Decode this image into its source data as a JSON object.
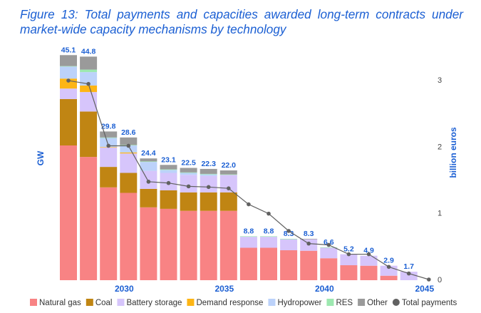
{
  "title": "Figure 13: Total payments and capacities awarded long-term contracts under market-wide capacity mechanisms by technology",
  "chart_data": {
    "type": "bar",
    "stacked": true,
    "title": "Figure 13: Total payments and capacities awarded long-term contracts under market-wide capacity mechanisms by technology",
    "ylabel": "GW",
    "y2label": "billion euros",
    "x": [
      2027,
      2028,
      2029,
      2030,
      2031,
      2032,
      2033,
      2034,
      2035,
      2036,
      2037,
      2038,
      2039,
      2040,
      2041,
      2042,
      2043,
      2044,
      2045
    ],
    "xtick_labels": [
      "2030",
      "2035",
      "2040",
      "2045"
    ],
    "xticks": [
      2030,
      2035,
      2040,
      2045
    ],
    "y2ticks": [
      "0",
      "1",
      "2",
      "3"
    ],
    "y2lim": [
      0,
      3
    ],
    "ylim": [
      0,
      45.1
    ],
    "grid": false,
    "legend_position": "bottom",
    "totals_labels": [
      "45.1",
      "44.8",
      "29.8",
      "28.6",
      "24.4",
      "23.1",
      "22.5",
      "22.3",
      "22.0",
      "8.8",
      "8.8",
      "8.3",
      "8.3",
      "6.6",
      "5.2",
      "4.9",
      "2.9",
      "1.7",
      ""
    ],
    "series": [
      {
        "name": "Natural gas",
        "color": "#f88384",
        "values": [
          27.0,
          24.7,
          18.6,
          17.5,
          14.6,
          14.3,
          13.9,
          13.9,
          13.9,
          6.5,
          6.5,
          6.0,
          5.9,
          4.4,
          3.0,
          2.9,
          0.9,
          0,
          0
        ]
      },
      {
        "name": "Coal",
        "color": "#c08513",
        "values": [
          9.3,
          9.1,
          4.1,
          4.0,
          3.7,
          3.7,
          3.7,
          3.7,
          3.7,
          0,
          0,
          0,
          0,
          0,
          0,
          0,
          0,
          0,
          0
        ]
      },
      {
        "name": "Battery storage",
        "color": "#d6c5fb",
        "values": [
          2.1,
          3.9,
          3.9,
          3.9,
          3.6,
          3.5,
          3.5,
          3.3,
          3.5,
          2.2,
          2.2,
          2.2,
          2.3,
          2.1,
          2.2,
          2.0,
          2.0,
          1.7,
          0
        ]
      },
      {
        "name": "Demand response",
        "color": "#fdb515",
        "values": [
          2.0,
          1.3,
          0.1,
          0.2,
          0,
          0,
          0,
          0,
          0,
          0,
          0,
          0,
          0,
          0,
          0,
          0,
          0,
          0,
          0
        ]
      },
      {
        "name": "Hydropower",
        "color": "#bcd2fa",
        "values": [
          2.4,
          2.7,
          1.8,
          1.4,
          1.8,
          0.6,
          0.4,
          0.3,
          0,
          0,
          0,
          0,
          0,
          0,
          0,
          0,
          0,
          0,
          0
        ]
      },
      {
        "name": "RES",
        "color": "#9de8b0",
        "values": [
          0.1,
          0.5,
          0.1,
          0.1,
          0.1,
          0.1,
          0.1,
          0.1,
          0.1,
          0.1,
          0.1,
          0.1,
          0,
          0.1,
          0,
          0,
          0,
          0,
          0
        ]
      },
      {
        "name": "Other",
        "color": "#9a9a9a",
        "values": [
          2.2,
          2.6,
          1.2,
          1.5,
          0.6,
          0.9,
          0.9,
          1.0,
          0.8,
          0,
          0,
          0,
          0.1,
          0,
          0,
          0,
          0,
          0,
          0
        ]
      }
    ],
    "line": {
      "name": "Total payments",
      "color": "#616161",
      "axis": "right",
      "values": [
        2.99,
        2.94,
        2.01,
        2.01,
        1.47,
        1.45,
        1.4,
        1.39,
        1.37,
        1.13,
        0.99,
        0.73,
        0.54,
        0.52,
        0.38,
        0.38,
        0.19,
        0.09,
        0.0
      ]
    }
  }
}
